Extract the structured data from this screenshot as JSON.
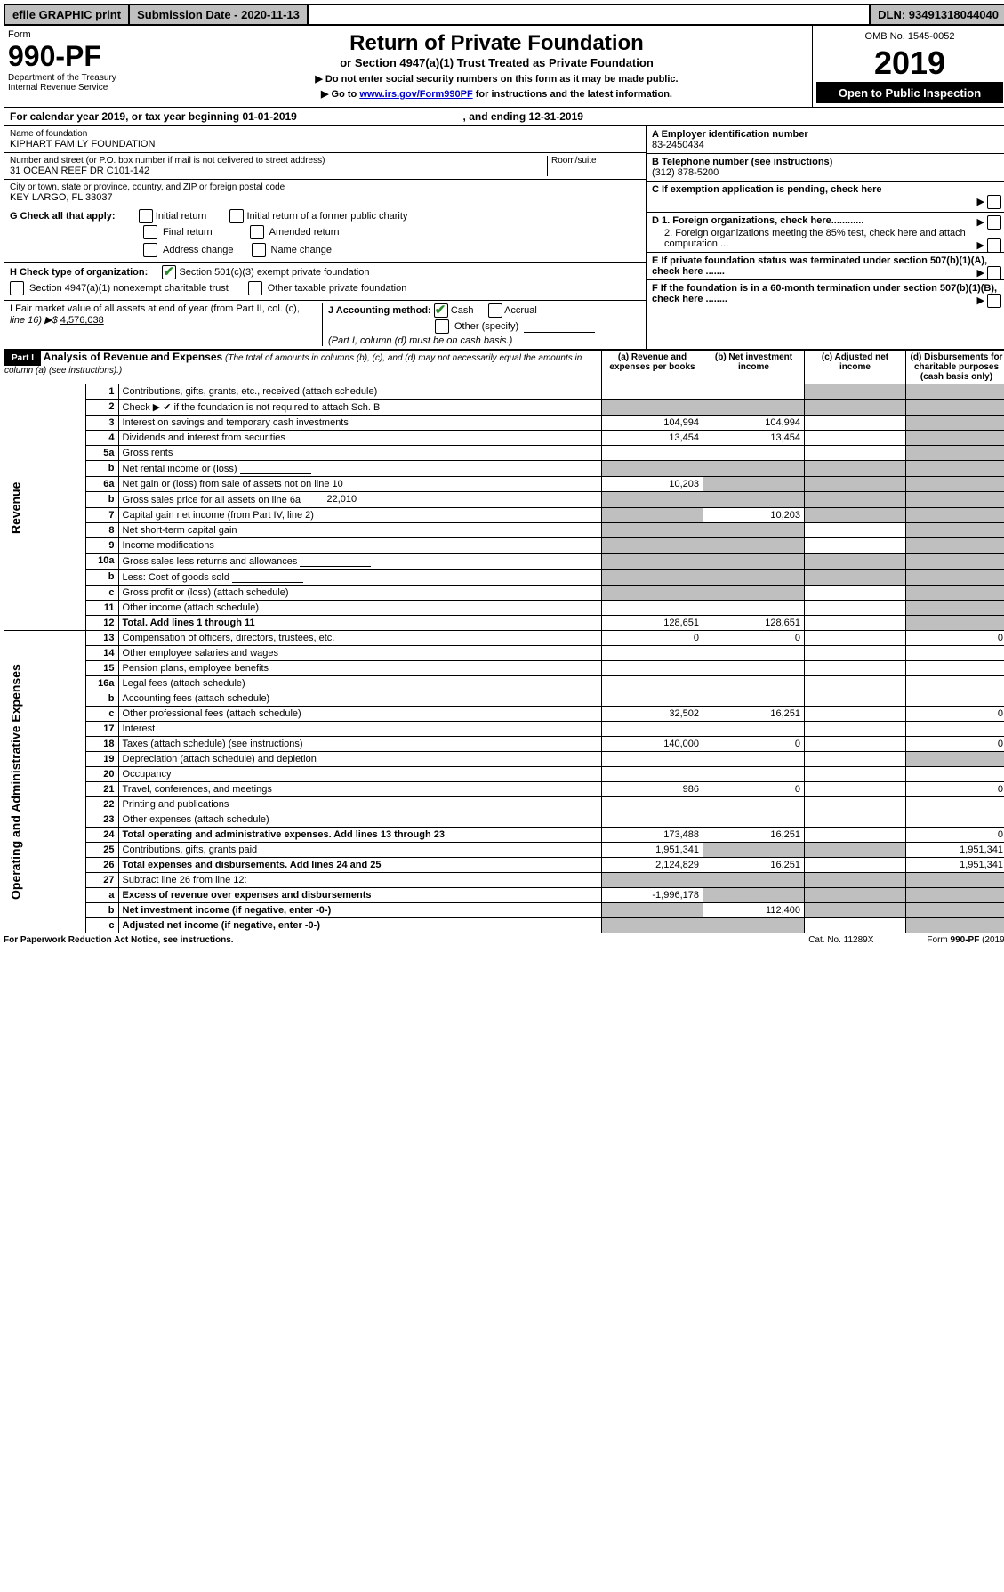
{
  "colors": {
    "bg": "#ffffff",
    "text": "#000000",
    "grey_btn": "#bfbfbf",
    "black": "#000000",
    "white": "#ffffff",
    "link": "#0000cc",
    "check_green": "#2b8a2b",
    "shade": "#bfbfbf"
  },
  "topbar": {
    "efile": "efile GRAPHIC print",
    "submission": "Submission Date - 2020-11-13",
    "dln": "DLN: 93491318044040"
  },
  "header": {
    "form_label": "Form",
    "form_num": "990-PF",
    "dept": "Department of the Treasury",
    "irs": "Internal Revenue Service",
    "title": "Return of Private Foundation",
    "subtitle": "or Section 4947(a)(1) Trust Treated as Private Foundation",
    "warn1": "Do not enter social security numbers on this form as it may be made public.",
    "warn2_pre": "Go to ",
    "warn2_link": "www.irs.gov/Form990PF",
    "warn2_post": " for instructions and the latest information.",
    "omb": "OMB No. 1545-0052",
    "year": "2019",
    "open": "Open to Public Inspection"
  },
  "cal_year": {
    "text_pre": "For calendar year 2019, or tax year beginning ",
    "begin": "01-01-2019",
    "text_mid": ", and ending ",
    "end": "12-31-2019"
  },
  "foundation": {
    "name_label": "Name of foundation",
    "name": "KIPHART FAMILY FOUNDATION",
    "addr_label": "Number and street (or P.O. box number if mail is not delivered to street address)",
    "room_label": "Room/suite",
    "addr": "31 OCEAN REEF DR C101-142",
    "city_label": "City or town, state or province, country, and ZIP or foreign postal code",
    "city": "KEY LARGO, FL  33037"
  },
  "right_box": {
    "a_label": "A Employer identification number",
    "a_val": "83-2450434",
    "b_label": "B Telephone number (see instructions)",
    "b_val": "(312) 878-5200",
    "c_label": "C If exemption application is pending, check here",
    "d1": "D 1. Foreign organizations, check here............",
    "d2": "2. Foreign organizations meeting the 85% test, check here and attach computation ...",
    "e": "E  If private foundation status was terminated under section 507(b)(1)(A), check here .......",
    "f": "F  If the foundation is in a 60-month termination under section 507(b)(1)(B), check here ........"
  },
  "g": {
    "label": "G Check all that apply:",
    "items": [
      "Initial return",
      "Initial return of a former public charity",
      "Final return",
      "Amended return",
      "Address change",
      "Name change"
    ]
  },
  "h": {
    "label": "H Check type of organization:",
    "opt1": "Section 501(c)(3) exempt private foundation",
    "opt2": "Section 4947(a)(1) nonexempt charitable trust",
    "opt3": "Other taxable private foundation"
  },
  "i": {
    "label": "I Fair market value of all assets at end of year (from Part II, col. (c),",
    "line16": "line 16) ▶$  ",
    "val": "4,576,038"
  },
  "j": {
    "label": "J Accounting method:",
    "cash": "Cash",
    "accrual": "Accrual",
    "other": "Other (specify)",
    "note": "(Part I, column (d) must be on cash basis.)"
  },
  "part1": {
    "label": "Part I",
    "title": "Analysis of Revenue and Expenses",
    "note": "(The total of amounts in columns (b), (c), and (d) may not necessarily equal the amounts in column (a) (see instructions).)",
    "col_a": "(a)   Revenue and expenses per books",
    "col_b": "(b)  Net investment income",
    "col_c": "(c)  Adjusted net income",
    "col_d": "(d)  Disbursements for charitable purposes (cash basis only)",
    "revenue_label": "Revenue",
    "expenses_label": "Operating and Administrative Expenses",
    "rows": [
      {
        "n": "1",
        "desc": "Contributions, gifts, grants, etc., received (attach schedule)",
        "a": "",
        "b": "",
        "c": "shade",
        "d": "shade"
      },
      {
        "n": "2",
        "desc": "Check ▶ ✔ if the foundation is not required to attach Sch. B",
        "a": "shade",
        "b": "shade",
        "c": "shade",
        "d": "shade",
        "checked": true
      },
      {
        "n": "3",
        "desc": "Interest on savings and temporary cash investments",
        "a": "104,994",
        "b": "104,994",
        "c": "",
        "d": "shade"
      },
      {
        "n": "4",
        "desc": "Dividends and interest from securities",
        "a": "13,454",
        "b": "13,454",
        "c": "",
        "d": "shade"
      },
      {
        "n": "5a",
        "desc": "Gross rents",
        "a": "",
        "b": "",
        "c": "",
        "d": "shade"
      },
      {
        "n": "b",
        "desc": "Net rental income or (loss)",
        "a": "shade",
        "b": "shade",
        "c": "shade",
        "d": "shade",
        "blank": true
      },
      {
        "n": "6a",
        "desc": "Net gain or (loss) from sale of assets not on line 10",
        "a": "10,203",
        "b": "shade",
        "c": "shade",
        "d": "shade"
      },
      {
        "n": "b",
        "desc": "Gross sales price for all assets on line 6a",
        "a": "shade",
        "b": "shade",
        "c": "shade",
        "d": "shade",
        "inline_val": "22,010"
      },
      {
        "n": "7",
        "desc": "Capital gain net income (from Part IV, line 2)",
        "a": "shade",
        "b": "10,203",
        "c": "shade",
        "d": "shade"
      },
      {
        "n": "8",
        "desc": "Net short-term capital gain",
        "a": "shade",
        "b": "shade",
        "c": "",
        "d": "shade"
      },
      {
        "n": "9",
        "desc": "Income modifications",
        "a": "shade",
        "b": "shade",
        "c": "",
        "d": "shade"
      },
      {
        "n": "10a",
        "desc": "Gross sales less returns and allowances",
        "a": "shade",
        "b": "shade",
        "c": "shade",
        "d": "shade",
        "blank": true
      },
      {
        "n": "b",
        "desc": "Less: Cost of goods sold",
        "a": "shade",
        "b": "shade",
        "c": "shade",
        "d": "shade",
        "blank": true
      },
      {
        "n": "c",
        "desc": "Gross profit or (loss) (attach schedule)",
        "a": "shade",
        "b": "shade",
        "c": "",
        "d": "shade"
      },
      {
        "n": "11",
        "desc": "Other income (attach schedule)",
        "a": "",
        "b": "",
        "c": "",
        "d": "shade"
      },
      {
        "n": "12",
        "desc": "Total. Add lines 1 through 11",
        "a": "128,651",
        "b": "128,651",
        "c": "",
        "d": "shade",
        "bold": true
      }
    ],
    "exp_rows": [
      {
        "n": "13",
        "desc": "Compensation of officers, directors, trustees, etc.",
        "a": "0",
        "b": "0",
        "c": "",
        "d": "0"
      },
      {
        "n": "14",
        "desc": "Other employee salaries and wages",
        "a": "",
        "b": "",
        "c": "",
        "d": ""
      },
      {
        "n": "15",
        "desc": "Pension plans, employee benefits",
        "a": "",
        "b": "",
        "c": "",
        "d": ""
      },
      {
        "n": "16a",
        "desc": "Legal fees (attach schedule)",
        "a": "",
        "b": "",
        "c": "",
        "d": ""
      },
      {
        "n": "b",
        "desc": "Accounting fees (attach schedule)",
        "a": "",
        "b": "",
        "c": "",
        "d": ""
      },
      {
        "n": "c",
        "desc": "Other professional fees (attach schedule)",
        "a": "32,502",
        "b": "16,251",
        "c": "",
        "d": "0"
      },
      {
        "n": "17",
        "desc": "Interest",
        "a": "",
        "b": "",
        "c": "",
        "d": ""
      },
      {
        "n": "18",
        "desc": "Taxes (attach schedule) (see instructions)",
        "a": "140,000",
        "b": "0",
        "c": "",
        "d": "0"
      },
      {
        "n": "19",
        "desc": "Depreciation (attach schedule) and depletion",
        "a": "",
        "b": "",
        "c": "",
        "d": "shade"
      },
      {
        "n": "20",
        "desc": "Occupancy",
        "a": "",
        "b": "",
        "c": "",
        "d": ""
      },
      {
        "n": "21",
        "desc": "Travel, conferences, and meetings",
        "a": "986",
        "b": "0",
        "c": "",
        "d": "0"
      },
      {
        "n": "22",
        "desc": "Printing and publications",
        "a": "",
        "b": "",
        "c": "",
        "d": ""
      },
      {
        "n": "23",
        "desc": "Other expenses (attach schedule)",
        "a": "",
        "b": "",
        "c": "",
        "d": ""
      },
      {
        "n": "24",
        "desc": "Total operating and administrative expenses. Add lines 13 through 23",
        "a": "173,488",
        "b": "16,251",
        "c": "",
        "d": "0",
        "bold": true
      },
      {
        "n": "25",
        "desc": "Contributions, gifts, grants paid",
        "a": "1,951,341",
        "b": "shade",
        "c": "shade",
        "d": "1,951,341"
      },
      {
        "n": "26",
        "desc": "Total expenses and disbursements. Add lines 24 and 25",
        "a": "2,124,829",
        "b": "16,251",
        "c": "",
        "d": "1,951,341",
        "bold": true
      },
      {
        "n": "27",
        "desc": "Subtract line 26 from line 12:",
        "a": "shade",
        "b": "shade",
        "c": "shade",
        "d": "shade"
      },
      {
        "n": "a",
        "desc": "Excess of revenue over expenses and disbursements",
        "a": "-1,996,178",
        "b": "shade",
        "c": "shade",
        "d": "shade",
        "bold": true
      },
      {
        "n": "b",
        "desc": "Net investment income (if negative, enter -0-)",
        "a": "shade",
        "b": "112,400",
        "c": "shade",
        "d": "shade",
        "bold": true
      },
      {
        "n": "c",
        "desc": "Adjusted net income (if negative, enter -0-)",
        "a": "shade",
        "b": "shade",
        "c": "",
        "d": "shade",
        "bold": true
      }
    ]
  },
  "footer": {
    "left": "For Paperwork Reduction Act Notice, see instructions.",
    "mid": "Cat. No. 11289X",
    "right": "Form 990-PF (2019)"
  }
}
